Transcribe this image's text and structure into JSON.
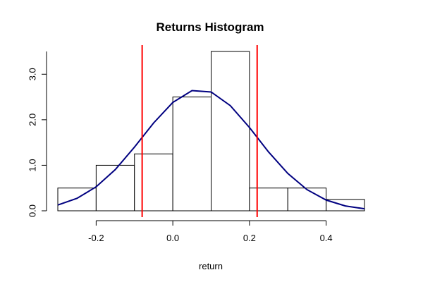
{
  "chart_data": {
    "type": "histogram",
    "title": "Returns Histogram",
    "x_label": "return",
    "bins": [
      -0.3,
      -0.2,
      -0.1,
      0.0,
      0.1,
      0.2,
      0.3,
      0.4,
      0.5
    ],
    "values": [
      0.5,
      1.0,
      1.25,
      2.5,
      3.5,
      0.5,
      0.5,
      0.25
    ],
    "bar_fill": "#ffffff",
    "bar_stroke": "#000000",
    "xlim": [
      -0.3,
      0.5
    ],
    "xticks": [
      -0.2,
      {
        "value": 0,
        "label": "0.0"
      },
      0.2,
      0.4
    ],
    "ylim": [
      0,
      3.5
    ],
    "yticks": [
      {
        "value": 0,
        "label": "0.0"
      },
      {
        "value": 1,
        "label": "1.0"
      },
      {
        "value": 2,
        "label": "2.0"
      },
      {
        "value": 3,
        "label": "3.0"
      }
    ],
    "curve": {
      "color": "#000080",
      "x": [
        -0.3,
        -0.25,
        -0.2,
        -0.15,
        -0.1,
        -0.05,
        0,
        0.05,
        0.1,
        0.15,
        0.2,
        0.25,
        0.3,
        0.35,
        0.4,
        0.45,
        0.5
      ],
      "values": [
        0.127,
        0.273,
        0.527,
        0.906,
        1.4,
        1.93,
        2.38,
        2.64,
        2.61,
        2.31,
        1.83,
        1.29,
        0.82,
        0.465,
        0.236,
        0.107,
        0.044
      ]
    },
    "vlines": [
      -0.08,
      0.22
    ],
    "vline_color": "#ff0000"
  }
}
